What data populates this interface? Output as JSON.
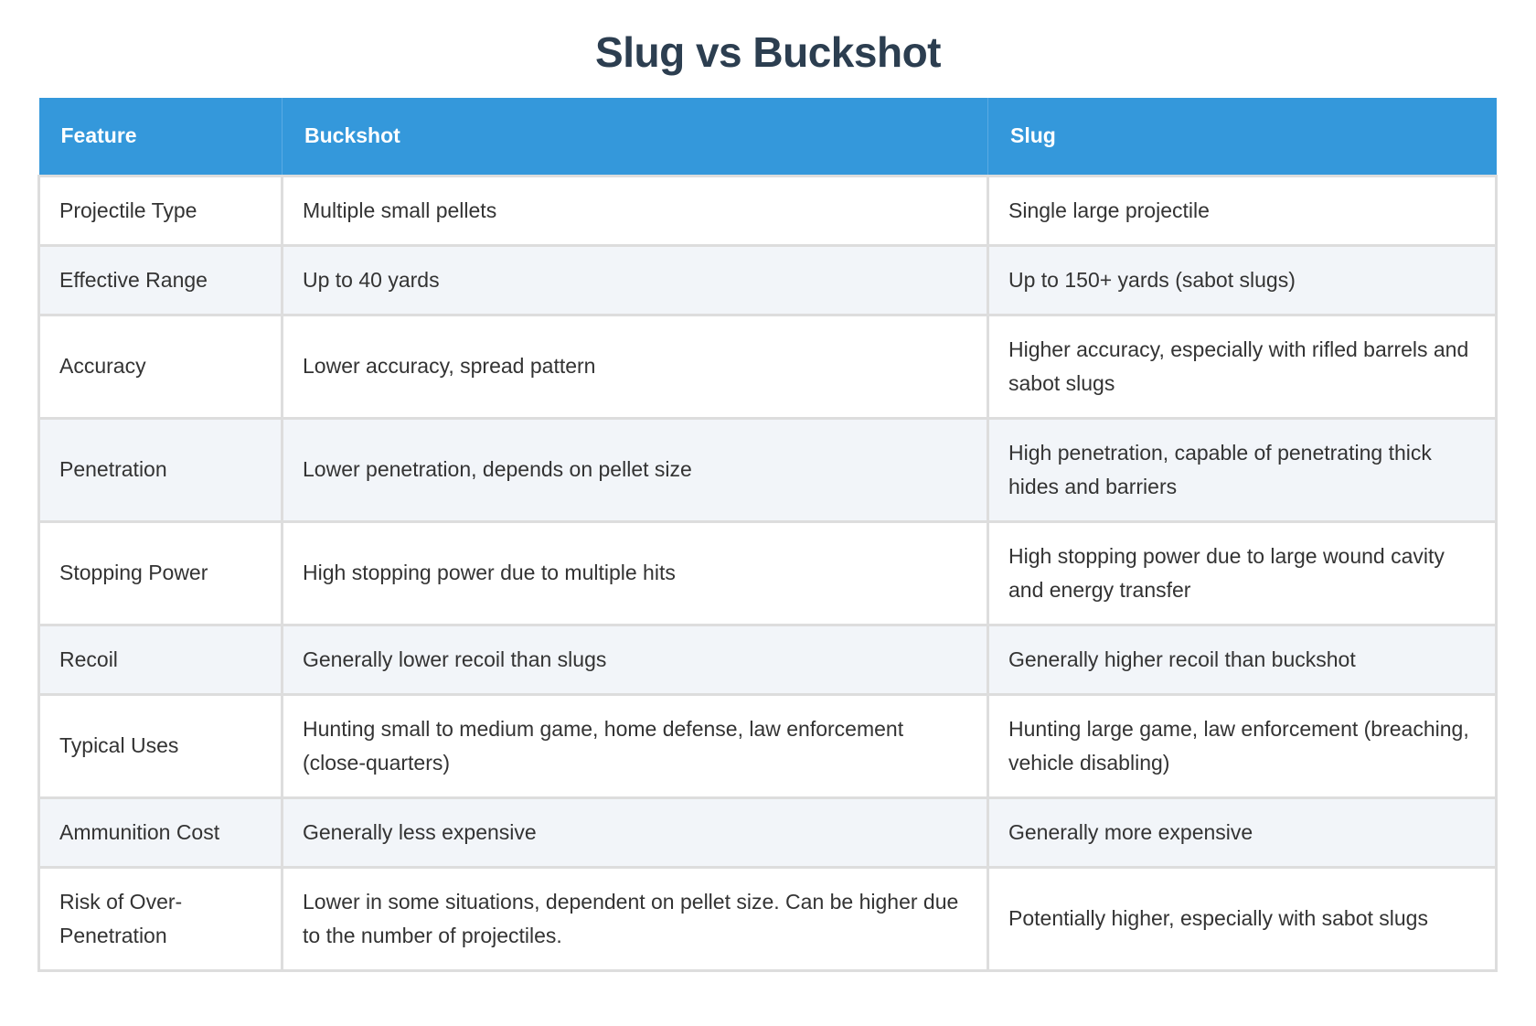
{
  "title": "Slug vs Buckshot",
  "headers": [
    "Feature",
    "Buckshot",
    "Slug"
  ],
  "rows": [
    [
      "Projectile Type",
      "Multiple small pellets",
      "Single large projectile"
    ],
    [
      "Effective Range",
      "Up to 40 yards",
      "Up to 150+ yards (sabot slugs)"
    ],
    [
      "Accuracy",
      "Lower accuracy, spread pattern",
      "Higher accuracy, especially with rifled barrels and sabot slugs"
    ],
    [
      "Penetration",
      "Lower penetration, depends on pellet size",
      "High penetration, capable of penetrating thick hides and barriers"
    ],
    [
      "Stopping Power",
      "High stopping power due to multiple hits",
      "High stopping power due to large wound cavity and energy transfer"
    ],
    [
      "Recoil",
      "Generally lower recoil than slugs",
      "Generally higher recoil than buckshot"
    ],
    [
      "Typical Uses",
      "Hunting small to medium game, home defense, law enforcement (close-quarters)",
      "Hunting large game, law enforcement (breaching, vehicle disabling)"
    ],
    [
      "Ammunition Cost",
      "Generally less expensive",
      "Generally more expensive"
    ],
    [
      "Risk of Over-Penetration",
      "Lower in some situations, dependent on pellet size. Can be higher due to the number of projectiles.",
      "Potentially higher, especially with sabot slugs"
    ]
  ],
  "colors": {
    "header_bg": "#3498db",
    "title": "#2c3e50",
    "alt_row": "#f2f5f9",
    "border": "#dddddd"
  }
}
